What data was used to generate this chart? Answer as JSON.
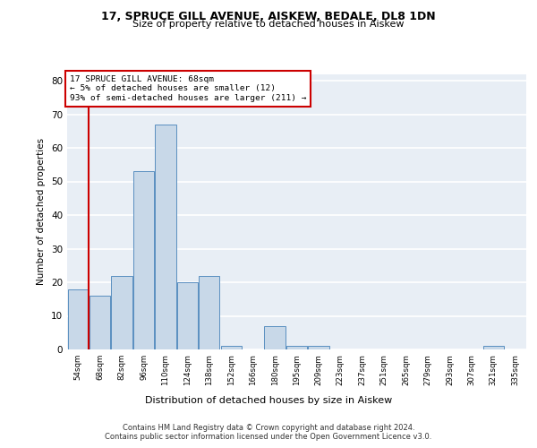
{
  "title_line1": "17, SPRUCE GILL AVENUE, AISKEW, BEDALE, DL8 1DN",
  "title_line2": "Size of property relative to detached houses in Aiskew",
  "xlabel": "Distribution of detached houses by size in Aiskew",
  "ylabel": "Number of detached properties",
  "annotation_line1": "17 SPRUCE GILL AVENUE: 68sqm",
  "annotation_line2": "← 5% of detached houses are smaller (12)",
  "annotation_line3": "93% of semi-detached houses are larger (211) →",
  "footer_line1": "Contains HM Land Registry data © Crown copyright and database right 2024.",
  "footer_line2": "Contains public sector information licensed under the Open Government Licence v3.0.",
  "bar_labels": [
    "54sqm",
    "68sqm",
    "82sqm",
    "96sqm",
    "110sqm",
    "124sqm",
    "138sqm",
    "152sqm",
    "166sqm",
    "180sqm",
    "195sqm",
    "209sqm",
    "223sqm",
    "237sqm",
    "251sqm",
    "265sqm",
    "279sqm",
    "293sqm",
    "307sqm",
    "321sqm",
    "335sqm"
  ],
  "bar_heights": [
    18,
    16,
    22,
    53,
    67,
    20,
    22,
    1,
    0,
    7,
    1,
    1,
    0,
    0,
    0,
    0,
    0,
    0,
    0,
    1,
    0
  ],
  "bar_color": "#c8d8e8",
  "bar_edge_color": "#5a8fc0",
  "vline_color": "#cc0000",
  "annotation_box_color": "#cc0000",
  "ylim": [
    0,
    82
  ],
  "yticks": [
    0,
    10,
    20,
    30,
    40,
    50,
    60,
    70,
    80
  ],
  "background_color": "#e8eef5",
  "grid_color": "#ffffff"
}
